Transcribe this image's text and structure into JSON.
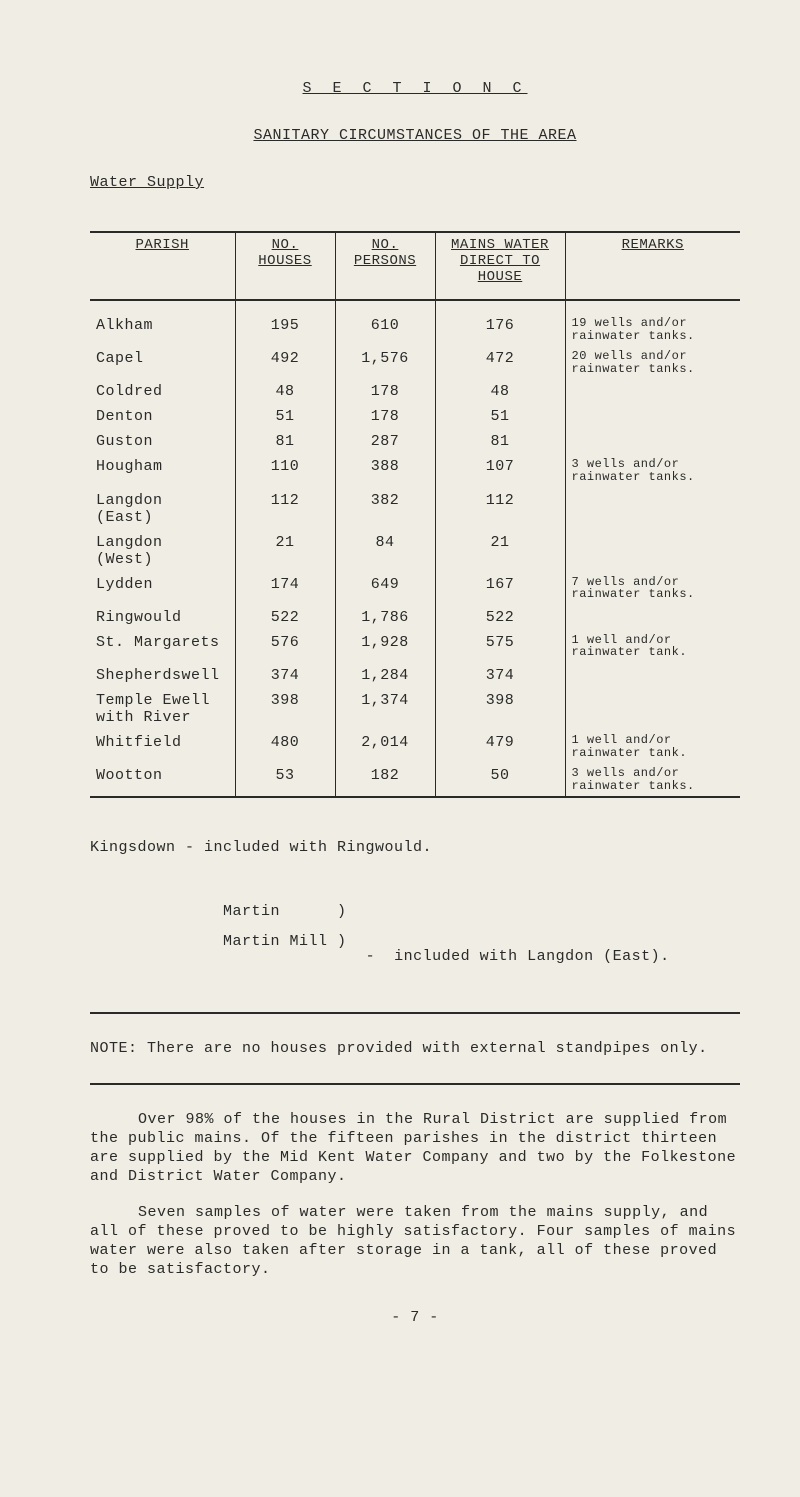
{
  "section_title": "S E C T I O N   C",
  "sub_title": "SANITARY CIRCUMSTANCES OF THE AREA",
  "water_supply_label": "Water Supply",
  "table": {
    "headers": {
      "parish": "PARISH",
      "houses": "NO. HOUSES",
      "persons": "NO. PERSONS",
      "mains": "MAINS WATER DIRECT TO HOUSE",
      "remarks": "REMARKS"
    },
    "rows": [
      {
        "parish": "Alkham",
        "houses": "195",
        "persons": "610",
        "mains": "176",
        "remarks": "19 wells and/or\nrainwater tanks."
      },
      {
        "parish": "Capel",
        "houses": "492",
        "persons": "1,576",
        "mains": "472",
        "remarks": "20 wells and/or\nrainwater tanks."
      },
      {
        "parish": "Coldred",
        "houses": "48",
        "persons": "178",
        "mains": "48",
        "remarks": ""
      },
      {
        "parish": "Denton",
        "houses": "51",
        "persons": "178",
        "mains": "51",
        "remarks": ""
      },
      {
        "parish": "Guston",
        "houses": "81",
        "persons": "287",
        "mains": "81",
        "remarks": ""
      },
      {
        "parish": "Hougham",
        "houses": "110",
        "persons": "388",
        "mains": "107",
        "remarks": "3 wells and/or\nrainwater tanks."
      },
      {
        "parish": "Langdon (East)",
        "houses": "112",
        "persons": "382",
        "mains": "112",
        "remarks": ""
      },
      {
        "parish": "Langdon (West)",
        "houses": "21",
        "persons": "84",
        "mains": "21",
        "remarks": ""
      },
      {
        "parish": "Lydden",
        "houses": "174",
        "persons": "649",
        "mains": "167",
        "remarks": "7 wells and/or\nrainwater tanks."
      },
      {
        "parish": "Ringwould",
        "houses": "522",
        "persons": "1,786",
        "mains": "522",
        "remarks": ""
      },
      {
        "parish": "St. Margarets",
        "houses": "576",
        "persons": "1,928",
        "mains": "575",
        "remarks": "1 well and/or\nrainwater tank."
      },
      {
        "parish": "Shepherdswell",
        "houses": "374",
        "persons": "1,284",
        "mains": "374",
        "remarks": ""
      },
      {
        "parish": "Temple Ewell\nwith River",
        "houses": "398",
        "persons": "1,374",
        "mains": "398",
        "remarks": ""
      },
      {
        "parish": "Whitfield",
        "houses": "480",
        "persons": "2,014",
        "mains": "479",
        "remarks": "1 well and/or\nrainwater tank."
      },
      {
        "parish": "Wootton",
        "houses": "53",
        "persons": "182",
        "mains": "50",
        "remarks": "3 wells and/or\nrainwater tanks."
      }
    ]
  },
  "notes": {
    "kingsdown": "Kingsdown  -  included with Ringwould.",
    "martin_a": "Martin      )",
    "martin_b": "Martin Mill )",
    "martin_tail": "  -  included with Langdon (East)."
  },
  "note_line": "NOTE:   There are no houses provided with external standpipes only.",
  "para1": "Over 98% of the houses in the Rural District are supplied from the public mains.  Of the fifteen parishes in the district thirteen are supplied by the Mid Kent Water Company and two by the Folkestone and District Water Company.",
  "para2": "Seven samples of water were taken from the mains supply, and all of these proved to be highly satisfactory.  Four samples of mains water were also taken after storage in a tank, all of these proved to be satisfactory.",
  "page_number": "- 7 -"
}
